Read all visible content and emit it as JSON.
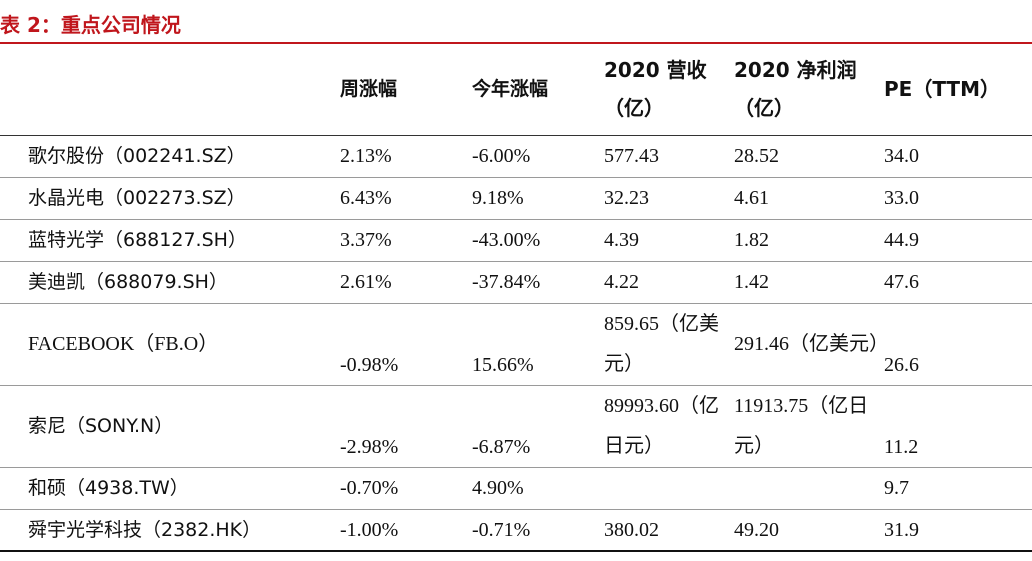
{
  "title": "表 2：重点公司情况",
  "headers": [
    "",
    "周涨幅",
    "今年涨幅",
    "2020 营收（亿）",
    "2020 净利润（亿）",
    "PE（TTM）"
  ],
  "header_lines": {
    "rev_line1": "2020 营收",
    "rev_line2": "（亿）",
    "np_line1": "2020 净利润",
    "np_line2": "（亿）"
  },
  "rows": [
    {
      "company": "歌尔股份（002241.SZ）",
      "weekly": "2.13%",
      "ytd": "-6.00%",
      "revenue": "577.43",
      "net_profit": "28.52",
      "pe": "34.0"
    },
    {
      "company": "水晶光电（002273.SZ）",
      "weekly": "6.43%",
      "ytd": "9.18%",
      "revenue": "32.23",
      "net_profit": "4.61",
      "pe": "33.0"
    },
    {
      "company": "蓝特光学（688127.SH）",
      "weekly": "3.37%",
      "ytd": "-43.00%",
      "revenue": "4.39",
      "net_profit": "1.82",
      "pe": "44.9"
    },
    {
      "company": "美迪凯（688079.SH）",
      "weekly": "2.61%",
      "ytd": "-37.84%",
      "revenue": "4.22",
      "net_profit": "1.42",
      "pe": "47.6"
    },
    {
      "company": "FACEBOOK（FB.O）",
      "weekly": "-0.98%",
      "ytd": "15.66%",
      "revenue": "859.65（亿美元）",
      "net_profit": "291.46（亿美元）",
      "pe": "26.6"
    },
    {
      "company": "索尼（SONY.N）",
      "weekly": "-2.98%",
      "ytd": "-6.87%",
      "revenue": "89993.60（亿日元）",
      "net_profit": "11913.75（亿日元）",
      "pe": "11.2"
    },
    {
      "company": "和硕（4938.TW）",
      "weekly": "-0.70%",
      "ytd": "4.90%",
      "revenue": "",
      "net_profit": "",
      "pe": "9.7"
    },
    {
      "company": "舜宇光学科技（2382.HK）",
      "weekly": "-1.00%",
      "ytd": "-0.71%",
      "revenue": "380.02",
      "net_profit": "49.20",
      "pe": "31.9"
    }
  ],
  "colors": {
    "title": "#c0161c",
    "rule": "#c0161c",
    "text": "#111111"
  }
}
